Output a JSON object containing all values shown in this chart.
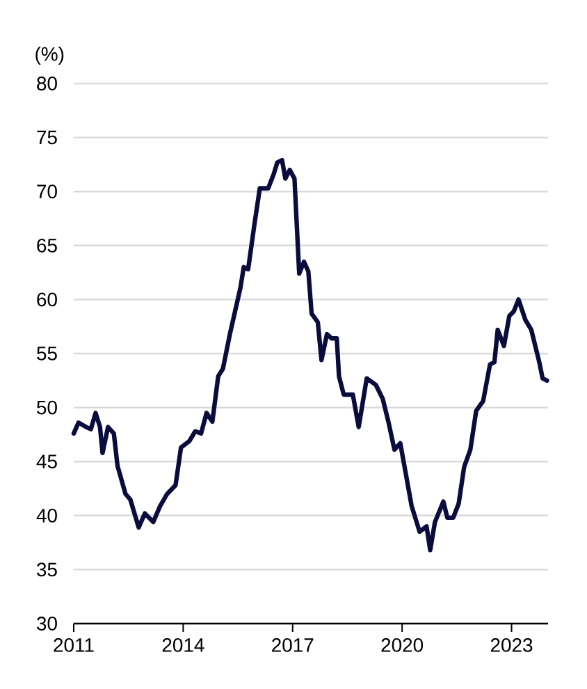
{
  "chart_data": {
    "type": "line",
    "ylabel": "(%)",
    "x": [
      2011.0,
      2011.13,
      2011.34,
      2011.47,
      2011.6,
      2011.72,
      2011.79,
      2011.94,
      2012.1,
      2012.2,
      2012.42,
      2012.55,
      2012.78,
      2012.95,
      2013.18,
      2013.37,
      2013.56,
      2013.79,
      2013.94,
      2014.17,
      2014.33,
      2014.49,
      2014.64,
      2014.8,
      2014.96,
      2015.09,
      2015.28,
      2015.57,
      2015.66,
      2015.78,
      2015.95,
      2016.1,
      2016.33,
      2016.48,
      2016.58,
      2016.71,
      2016.8,
      2016.92,
      2017.05,
      2017.18,
      2017.31,
      2017.43,
      2017.52,
      2017.69,
      2017.79,
      2017.94,
      2018.07,
      2018.21,
      2018.27,
      2018.4,
      2018.65,
      2018.81,
      2019.03,
      2019.28,
      2019.47,
      2019.63,
      2019.79,
      2019.95,
      2020.1,
      2020.26,
      2020.48,
      2020.67,
      2020.77,
      2020.9,
      2021.13,
      2021.24,
      2021.4,
      2021.55,
      2021.7,
      2021.87,
      2022.03,
      2022.22,
      2022.41,
      2022.53,
      2022.62,
      2022.79,
      2022.94,
      2023.06,
      2023.19,
      2023.38,
      2023.54,
      2023.76,
      2023.85,
      2023.97
    ],
    "series": [
      {
        "color": "#0b0c3e",
        "values": [
          47.6,
          48.6,
          48.2,
          48.0,
          49.5,
          48.2,
          45.8,
          48.2,
          47.6,
          44.6,
          42.0,
          41.5,
          38.9,
          40.2,
          39.4,
          40.9,
          42.0,
          42.8,
          46.3,
          46.9,
          47.8,
          47.6,
          49.5,
          48.7,
          52.9,
          53.6,
          56.8,
          61.1,
          63.0,
          62.8,
          66.9,
          70.3,
          70.3,
          71.6,
          72.7,
          72.9,
          71.2,
          72.0,
          71.2,
          62.4,
          63.5,
          62.6,
          58.7,
          57.9,
          54.4,
          56.8,
          56.4,
          56.4,
          52.9,
          51.2,
          51.2,
          48.2,
          52.7,
          52.1,
          50.8,
          48.6,
          46.1,
          46.7,
          43.9,
          40.9,
          38.5,
          39.0,
          36.8,
          39.4,
          41.3,
          39.8,
          39.8,
          41.1,
          44.5,
          46.1,
          49.7,
          50.6,
          54.0,
          54.2,
          57.2,
          55.7,
          58.5,
          58.9,
          60.0,
          58.1,
          57.2,
          54.2,
          52.7,
          52.5
        ]
      }
    ],
    "xlim": [
      2011,
      2024
    ],
    "xticks": [
      2011,
      2014,
      2017,
      2020,
      2023
    ],
    "ylim": [
      30,
      80
    ],
    "yticks": [
      30,
      35,
      40,
      45,
      50,
      55,
      60,
      65,
      70,
      75,
      80
    ],
    "grid": "y",
    "marker": "none",
    "line_style": "solid"
  }
}
